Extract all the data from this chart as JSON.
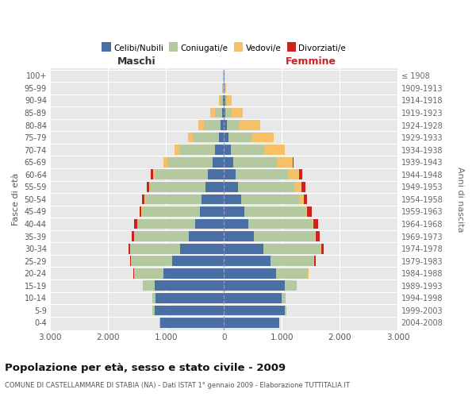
{
  "age_groups": [
    "0-4",
    "5-9",
    "10-14",
    "15-19",
    "20-24",
    "25-29",
    "30-34",
    "35-39",
    "40-44",
    "45-49",
    "50-54",
    "55-59",
    "60-64",
    "65-69",
    "70-74",
    "75-79",
    "80-84",
    "85-89",
    "90-94",
    "95-99",
    "100+"
  ],
  "birth_years": [
    "2004-2008",
    "1999-2003",
    "1994-1998",
    "1989-1993",
    "1984-1988",
    "1979-1983",
    "1974-1978",
    "1969-1973",
    "1964-1968",
    "1959-1963",
    "1954-1958",
    "1949-1953",
    "1944-1948",
    "1939-1943",
    "1934-1938",
    "1929-1933",
    "1924-1928",
    "1919-1923",
    "1914-1918",
    "1909-1913",
    "≤ 1908"
  ],
  "maschi": {
    "celibi": [
      1100,
      1200,
      1180,
      1200,
      1050,
      900,
      750,
      600,
      500,
      420,
      380,
      320,
      280,
      200,
      150,
      90,
      60,
      30,
      20,
      10,
      5
    ],
    "coniugati": [
      10,
      30,
      60,
      200,
      500,
      700,
      870,
      950,
      990,
      1000,
      980,
      950,
      900,
      780,
      620,
      450,
      280,
      120,
      40,
      15,
      5
    ],
    "vedovi": [
      0,
      0,
      0,
      5,
      5,
      5,
      5,
      5,
      5,
      5,
      10,
      20,
      40,
      60,
      80,
      80,
      100,
      80,
      30,
      10,
      2
    ],
    "divorziati": [
      0,
      0,
      0,
      0,
      5,
      10,
      20,
      30,
      60,
      30,
      40,
      40,
      40,
      5,
      5,
      5,
      5,
      0,
      0,
      0,
      0
    ]
  },
  "femmine": {
    "nubili": [
      950,
      1050,
      1000,
      1050,
      900,
      800,
      680,
      520,
      420,
      350,
      300,
      240,
      200,
      160,
      120,
      80,
      50,
      30,
      20,
      10,
      5
    ],
    "coniugate": [
      10,
      30,
      70,
      200,
      550,
      750,
      980,
      1050,
      1100,
      1050,
      1000,
      970,
      900,
      750,
      580,
      400,
      220,
      100,
      30,
      10,
      5
    ],
    "vedove": [
      0,
      0,
      0,
      5,
      5,
      10,
      15,
      20,
      30,
      40,
      80,
      130,
      200,
      280,
      350,
      380,
      350,
      200,
      80,
      20,
      2
    ],
    "divorziate": [
      0,
      0,
      0,
      0,
      10,
      20,
      40,
      60,
      80,
      70,
      60,
      60,
      50,
      10,
      5,
      5,
      5,
      0,
      0,
      0,
      0
    ]
  },
  "colors": {
    "celibi": "#4a6fa5",
    "coniugati": "#b5c9a0",
    "vedovi": "#f5c066",
    "divorziati": "#cc2222"
  },
  "xlim": 3000,
  "title": "Popolazione per età, sesso e stato civile - 2009",
  "subtitle": "COMUNE DI CASTELLAMMARE DI STABIA (NA) - Dati ISTAT 1° gennaio 2009 - Elaborazione TUTTITALIA.IT",
  "ylabel_left": "Fasce di età",
  "ylabel_right": "Anni di nascita",
  "maschi_label": "Maschi",
  "femmine_label": "Femmine",
  "legend_labels": [
    "Celibi/Nubili",
    "Coniugati/e",
    "Vedovi/e",
    "Divorziati/e"
  ],
  "xticks": [
    -3000,
    -2000,
    -1000,
    0,
    1000,
    2000,
    3000
  ],
  "xticklabels": [
    "3.000",
    "2.000",
    "1.000",
    "0",
    "1.000",
    "2.000",
    "3.000"
  ],
  "bg_color": "#e8e8e8",
  "maschi_color": "#333333",
  "femmine_color": "#cc2222"
}
